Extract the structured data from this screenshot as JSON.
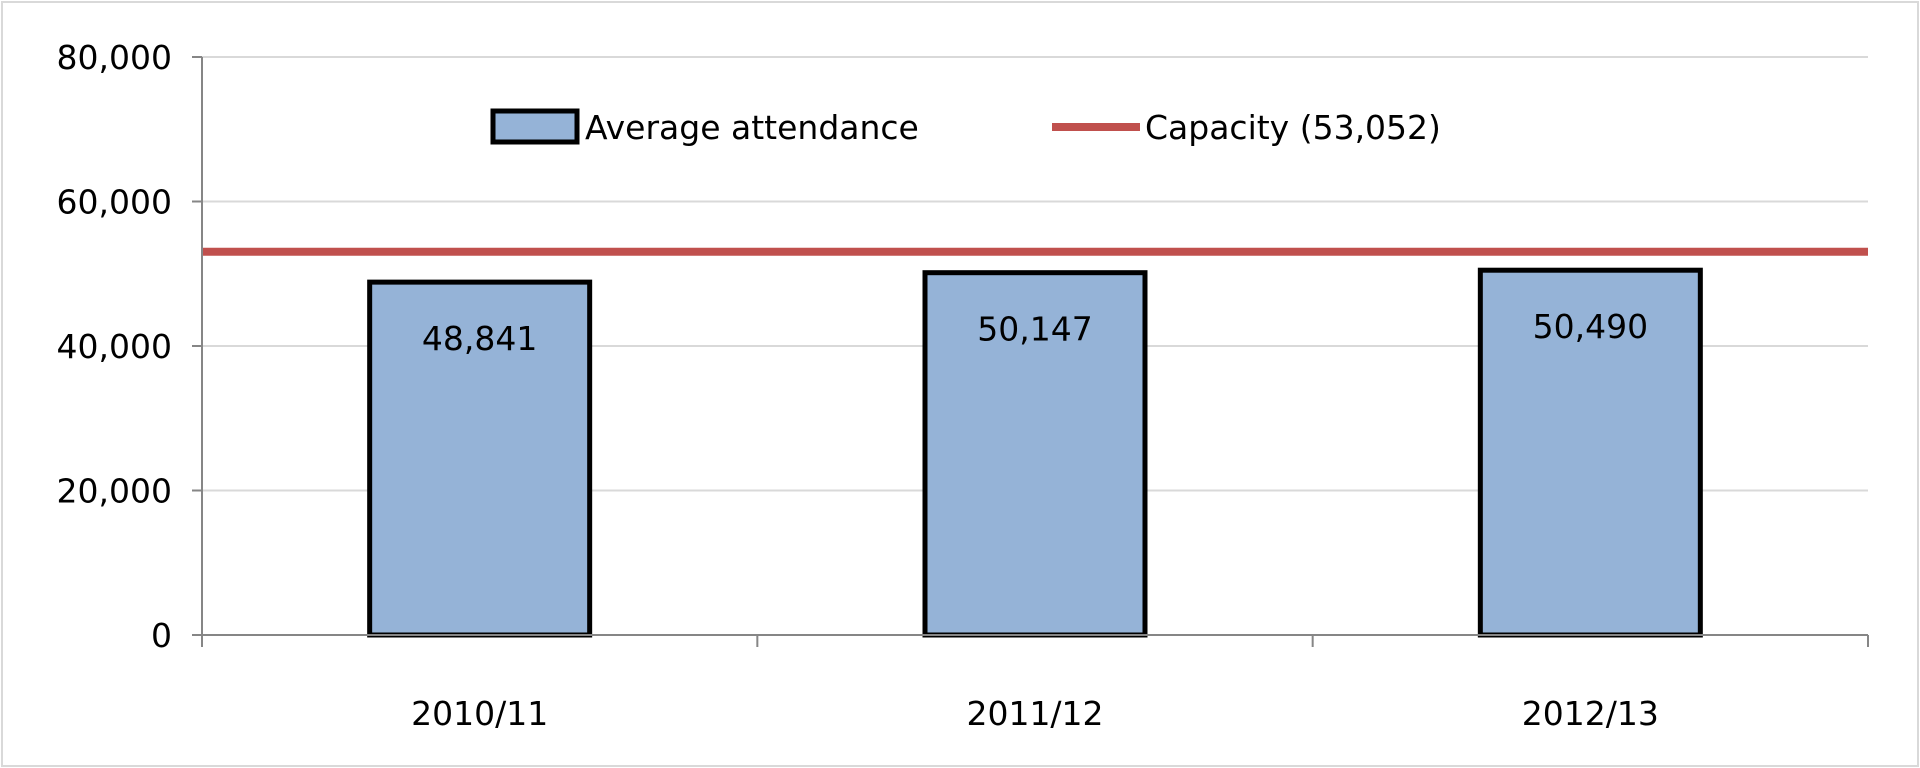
{
  "chart_data": {
    "type": "bar",
    "categories": [
      "2010/11",
      "2011/12",
      "2012/13"
    ],
    "series": [
      {
        "name": "Average attendance",
        "values": [
          48841,
          50147,
          50490
        ],
        "color": "#95b3d7"
      }
    ],
    "data_labels": [
      "48,841",
      "50,147",
      "50,490"
    ],
    "reference_line": {
      "name": "Capacity (53,052)",
      "value": 53052,
      "color": "#c0504d"
    },
    "ylim": [
      0,
      80000
    ],
    "yticks": [
      0,
      20000,
      40000,
      60000,
      80000
    ],
    "ytick_labels": [
      "0",
      "20,000",
      "40,000",
      "60,000",
      "80,000"
    ],
    "grid": true,
    "legend_position": "top-center"
  }
}
